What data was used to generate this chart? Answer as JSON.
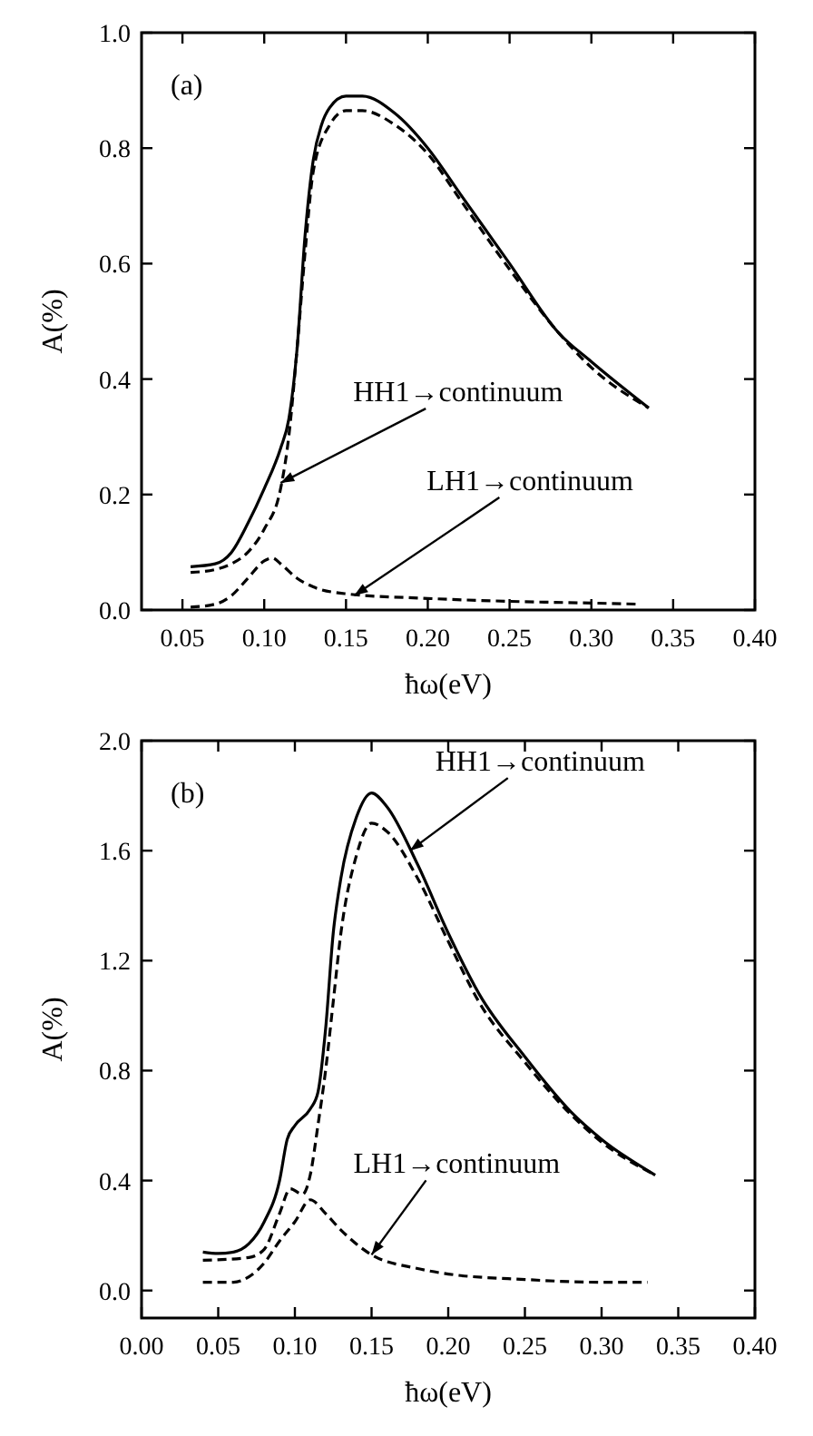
{
  "chart_data": [
    {
      "type": "line",
      "title": "(a)",
      "xlabel": "ħω(eV)",
      "ylabel": "A(%)",
      "xlim": [
        0.025,
        0.4
      ],
      "ylim": [
        0,
        1.0
      ],
      "xticks": [
        {
          "value": 0.05,
          "label": "0.05"
        },
        {
          "value": 0.1,
          "label": "0.10"
        },
        {
          "value": 0.15,
          "label": "0.15"
        },
        {
          "value": 0.2,
          "label": "0.20"
        },
        {
          "value": 0.25,
          "label": "0.25"
        },
        {
          "value": 0.3,
          "label": "0.30"
        },
        {
          "value": 0.35,
          "label": "0.35"
        },
        {
          "value": 0.4,
          "label": "0.40"
        }
      ],
      "yticks": [
        {
          "value": 0,
          "label": "0.0"
        },
        0.2,
        0.4,
        0.6,
        0.8,
        {
          "value": 1.0,
          "label": "1.0"
        }
      ],
      "grid": false,
      "series": [
        {
          "color": "#000000",
          "line_style": "solid",
          "x": [
            0.055,
            0.07,
            0.08,
            0.09,
            0.1,
            0.11,
            0.115,
            0.12,
            0.125,
            0.13,
            0.135,
            0.14,
            0.15,
            0.16,
            0.18,
            0.2,
            0.22,
            0.25,
            0.28,
            0.3,
            0.335
          ],
          "values": [
            0.075,
            0.08,
            0.1,
            0.15,
            0.21,
            0.28,
            0.33,
            0.45,
            0.65,
            0.78,
            0.84,
            0.87,
            0.89,
            0.89,
            0.86,
            0.8,
            0.72,
            0.6,
            0.48,
            0.43,
            0.35
          ]
        },
        {
          "color": "#000000",
          "line_style": "dashed",
          "x": [
            0.055,
            0.07,
            0.08,
            0.09,
            0.1,
            0.11,
            0.115,
            0.12,
            0.125,
            0.13,
            0.14,
            0.15,
            0.16,
            0.18,
            0.2,
            0.22,
            0.25,
            0.28,
            0.3,
            0.335
          ],
          "values": [
            0.065,
            0.07,
            0.08,
            0.1,
            0.14,
            0.21,
            0.3,
            0.45,
            0.62,
            0.76,
            0.84,
            0.865,
            0.865,
            0.84,
            0.79,
            0.71,
            0.59,
            0.48,
            0.42,
            0.35
          ]
        },
        {
          "color": "#000000",
          "line_style": "dashed",
          "x": [
            0.055,
            0.07,
            0.08,
            0.09,
            0.1,
            0.105,
            0.11,
            0.12,
            0.13,
            0.15,
            0.2,
            0.25,
            0.3,
            0.33
          ],
          "values": [
            0.005,
            0.01,
            0.025,
            0.055,
            0.085,
            0.09,
            0.08,
            0.055,
            0.04,
            0.028,
            0.02,
            0.015,
            0.012,
            0.01
          ]
        }
      ],
      "annotations": [
        {
          "text": "HH1→continuum",
          "x": 0.11,
          "y": 0.22
        },
        {
          "text": "LH1→continuum",
          "x": 0.155,
          "y": 0.025
        }
      ]
    },
    {
      "type": "line",
      "title": "(b)",
      "xlabel": "ħω(eV)",
      "ylabel": "A(%)",
      "xlim": [
        0,
        0.4
      ],
      "ylim": [
        -0.1,
        2.0
      ],
      "xticks": [
        {
          "value": 0,
          "label": "0.00"
        },
        {
          "value": 0.05,
          "label": "0.05"
        },
        {
          "value": 0.1,
          "label": "0.10"
        },
        {
          "value": 0.15,
          "label": "0.15"
        },
        {
          "value": 0.2,
          "label": "0.20"
        },
        {
          "value": 0.25,
          "label": "0.25"
        },
        {
          "value": 0.3,
          "label": "0.30"
        },
        {
          "value": 0.35,
          "label": "0.35"
        },
        {
          "value": 0.4,
          "label": "0.40"
        }
      ],
      "yticks": [
        {
          "value": 0,
          "label": "0.0"
        },
        0.4,
        0.8,
        1.2,
        1.6,
        {
          "value": 2.0,
          "label": "2.0"
        }
      ],
      "grid": false,
      "series": [
        {
          "color": "#000000",
          "line_style": "solid",
          "x": [
            0.04,
            0.05,
            0.06,
            0.07,
            0.08,
            0.09,
            0.095,
            0.1,
            0.11,
            0.115,
            0.12,
            0.125,
            0.13,
            0.14,
            0.15,
            0.16,
            0.18,
            0.2,
            0.22,
            0.25,
            0.28,
            0.3,
            0.335
          ],
          "values": [
            0.14,
            0.135,
            0.14,
            0.17,
            0.25,
            0.4,
            0.55,
            0.6,
            0.66,
            0.72,
            0.95,
            1.3,
            1.5,
            1.72,
            1.81,
            1.76,
            1.55,
            1.3,
            1.08,
            0.85,
            0.65,
            0.55,
            0.42
          ]
        },
        {
          "color": "#000000",
          "line_style": "dashed",
          "x": [
            0.04,
            0.07,
            0.08,
            0.09,
            0.097,
            0.105,
            0.11,
            0.115,
            0.12,
            0.125,
            0.13,
            0.14,
            0.15,
            0.16,
            0.18,
            0.2,
            0.22,
            0.25,
            0.28,
            0.3,
            0.335
          ],
          "values": [
            0.11,
            0.12,
            0.15,
            0.28,
            0.37,
            0.35,
            0.42,
            0.6,
            0.8,
            1.05,
            1.3,
            1.58,
            1.7,
            1.67,
            1.5,
            1.27,
            1.05,
            0.83,
            0.64,
            0.54,
            0.42
          ]
        },
        {
          "color": "#000000",
          "line_style": "dashed",
          "x": [
            0.04,
            0.06,
            0.07,
            0.08,
            0.09,
            0.1,
            0.11,
            0.12,
            0.13,
            0.15,
            0.18,
            0.2,
            0.25,
            0.3,
            0.33
          ],
          "values": [
            0.03,
            0.03,
            0.05,
            0.1,
            0.18,
            0.25,
            0.33,
            0.28,
            0.22,
            0.13,
            0.08,
            0.06,
            0.04,
            0.03,
            0.03
          ]
        }
      ],
      "annotations": [
        {
          "text": "HH1→continuum",
          "x": 0.175,
          "y": 1.6
        },
        {
          "text": "LH1→continuum",
          "x": 0.15,
          "y": 0.13
        }
      ]
    }
  ]
}
